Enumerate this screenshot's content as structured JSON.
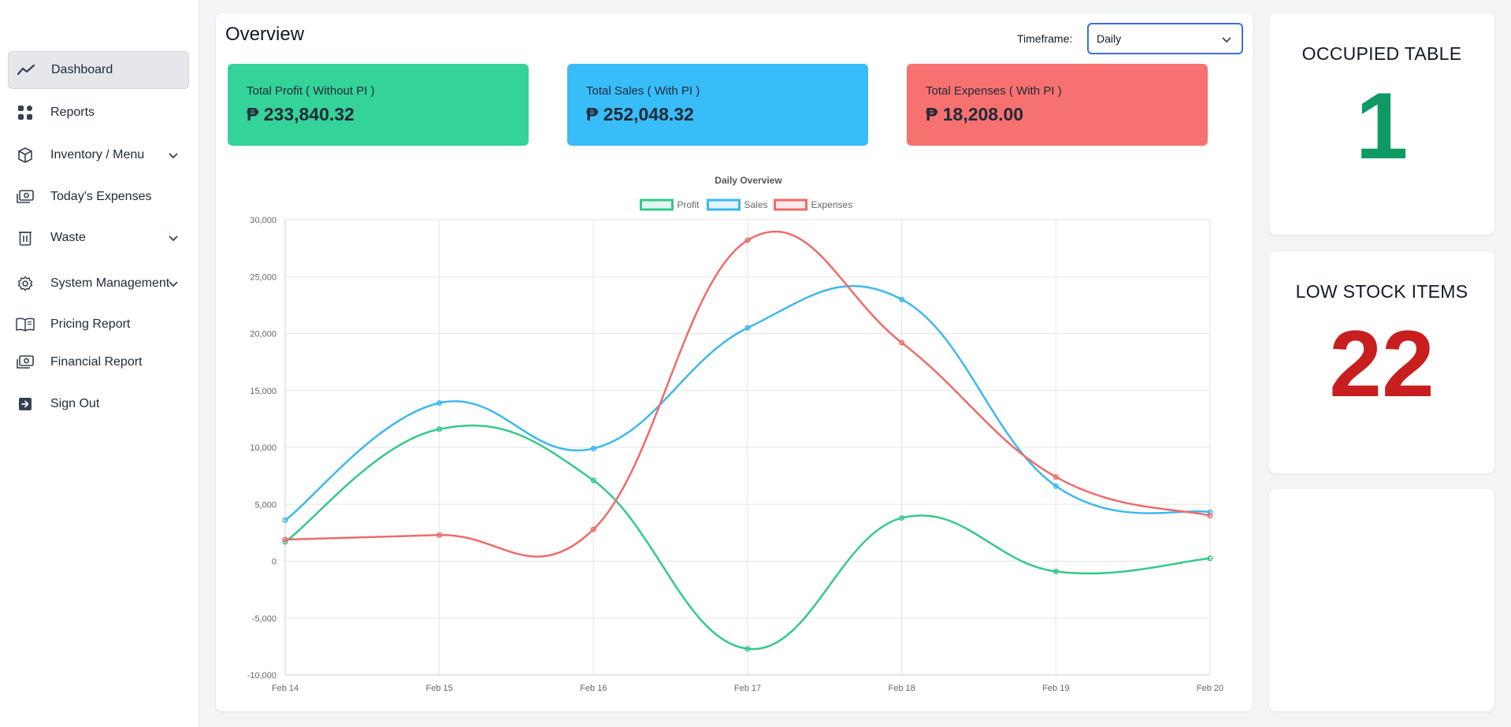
{
  "sidebar": {
    "items": [
      {
        "label": "Dashboard",
        "icon": "trend-line-icon",
        "active": true,
        "chevron": false
      },
      {
        "label": "Reports",
        "icon": "grid-icon",
        "active": false,
        "chevron": false
      },
      {
        "label": "Inventory / Menu",
        "icon": "box-icon",
        "active": false,
        "chevron": true
      },
      {
        "label": "Today's Expenses",
        "icon": "cash-icon",
        "active": false,
        "chevron": false
      },
      {
        "label": "Waste",
        "icon": "trash-icon",
        "active": false,
        "chevron": true
      },
      {
        "label": "System Management",
        "icon": "gear-icon",
        "active": false,
        "chevron": true
      },
      {
        "label": "Pricing Report",
        "icon": "book-icon",
        "active": false,
        "chevron": false
      },
      {
        "label": "Financial Report",
        "icon": "cash-icon",
        "active": false,
        "chevron": false
      },
      {
        "label": "Sign Out",
        "icon": "sign-out-icon",
        "active": false,
        "chevron": false
      }
    ]
  },
  "main": {
    "title": "Overview",
    "timeframe_label": "Timeframe:",
    "timeframe_value": "Daily",
    "stats": [
      {
        "label": "Total Profit ( Without PI )",
        "value": "₱ 233,840.32",
        "color": "#34d399"
      },
      {
        "label": "Total Sales ( With PI )",
        "value": "₱ 252,048.32",
        "color": "#38bdf8"
      },
      {
        "label": "Total Expenses ( With PI )",
        "value": "₱ 18,208.00",
        "color": "#f87171"
      }
    ]
  },
  "side_cards": {
    "occupied": {
      "title": "OCCUPIED TABLE",
      "value": "1",
      "color": "#0f9a64"
    },
    "low_stock": {
      "title": "LOW STOCK ITEMS",
      "value": "22",
      "color": "#c81e1e"
    }
  },
  "chart_data": {
    "type": "line",
    "title": "Daily Overview",
    "categories": [
      "Feb 14",
      "Feb 15",
      "Feb 16",
      "Feb 17",
      "Feb 18",
      "Feb 19",
      "Feb 20"
    ],
    "ylim": [
      -10000,
      30000
    ],
    "yticks": [
      30000,
      25000,
      20000,
      15000,
      10000,
      5000,
      0,
      -5000,
      -10000
    ],
    "ytick_labels": [
      "30,000",
      "25,000",
      "20,000",
      "15,000",
      "10,000",
      "5,000",
      "0",
      "-5,000",
      "-10,000"
    ],
    "grid": true,
    "legend": "top",
    "series": [
      {
        "name": "Profit",
        "color": "#34c98b",
        "fill": "rgba(52,201,139,0.15)",
        "values": [
          1700,
          11600,
          7100,
          -7700,
          3800,
          -900,
          250
        ]
      },
      {
        "name": "Sales",
        "color": "#3cb8ee",
        "fill": "rgba(60,184,238,0.15)",
        "values": [
          3600,
          13900,
          9900,
          20500,
          23000,
          6600,
          4300
        ]
      },
      {
        "name": "Expenses",
        "color": "#ee6b6b",
        "fill": "rgba(238,107,107,0.15)",
        "values": [
          1900,
          2300,
          2800,
          28200,
          19200,
          7400,
          4000
        ]
      }
    ]
  }
}
